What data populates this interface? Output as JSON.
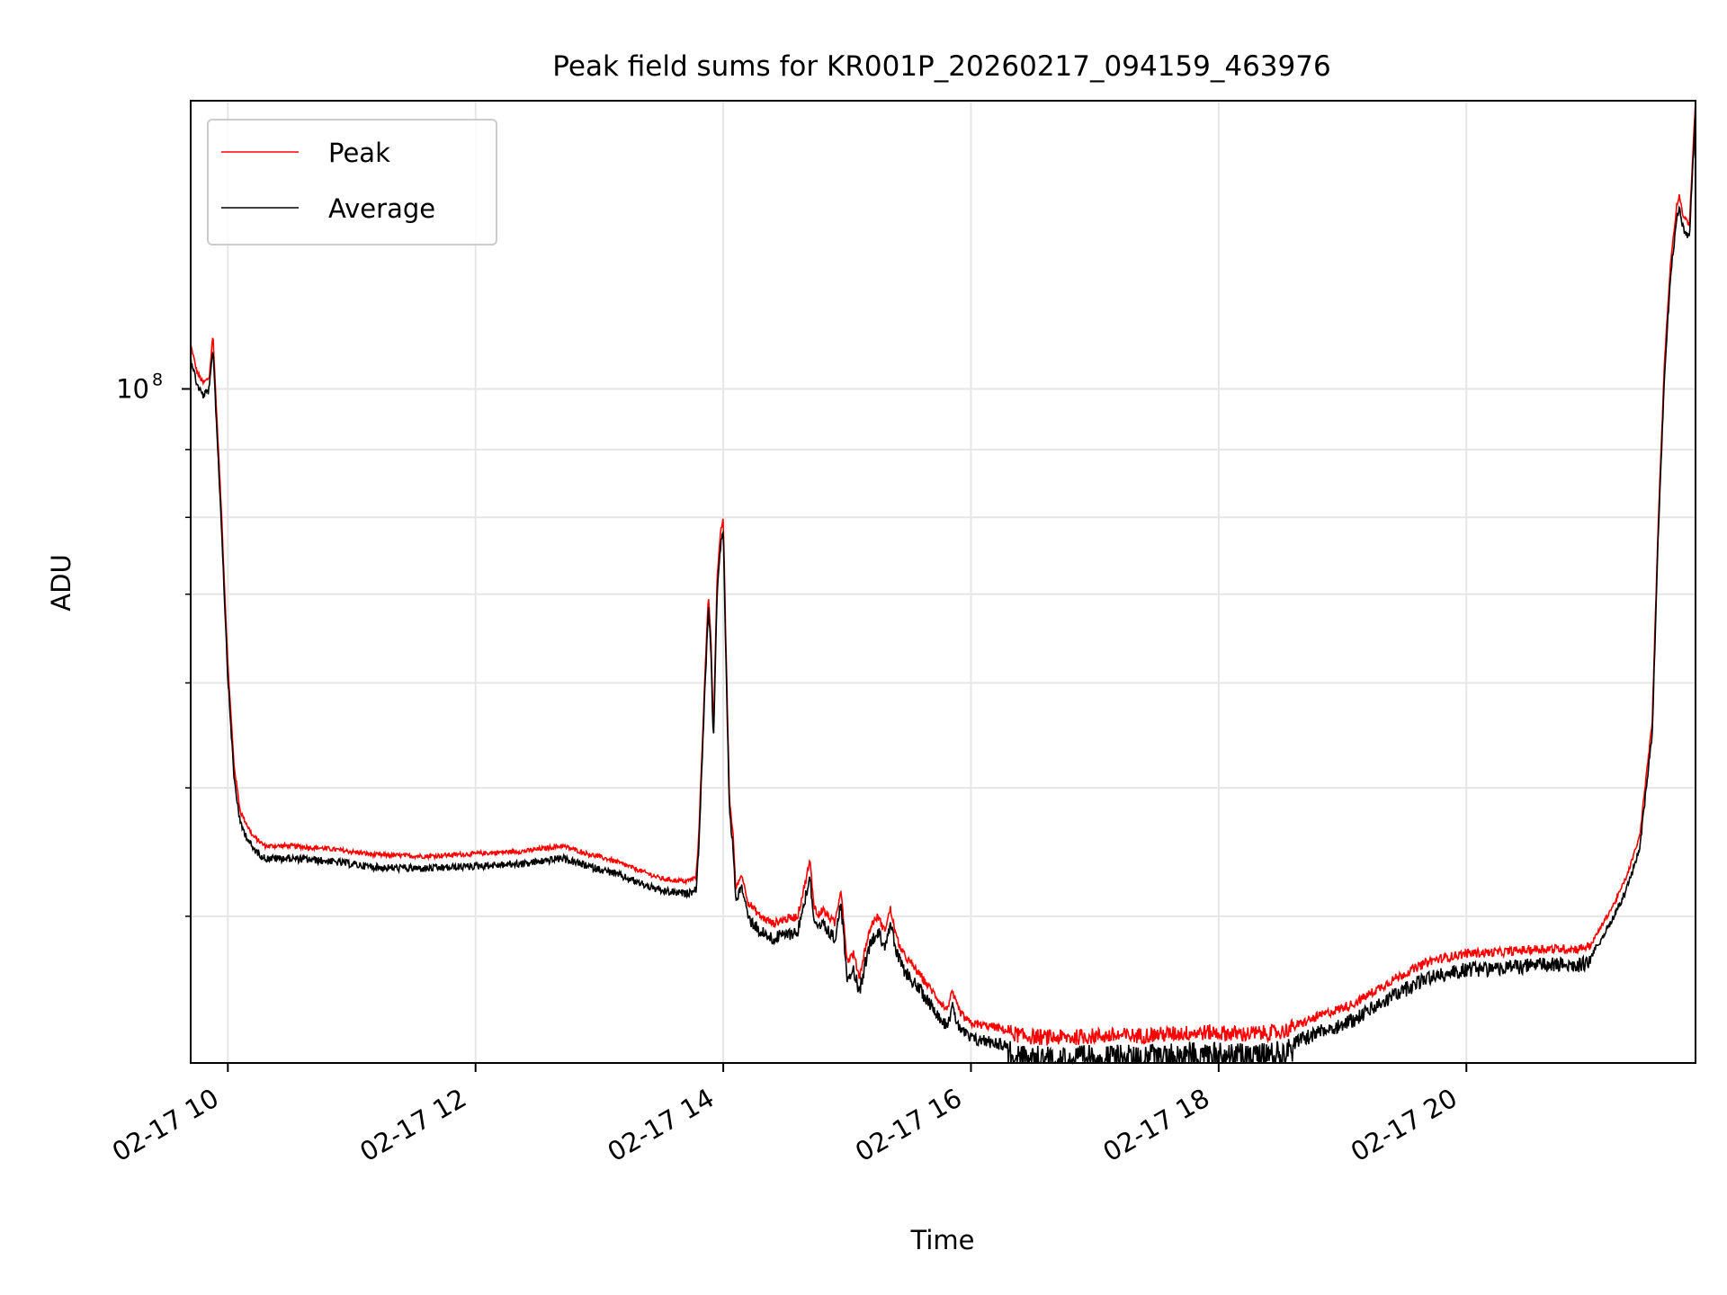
{
  "chart_data": {
    "type": "line",
    "title": "Peak field sums for KR001P_20260217_094159_463976",
    "xlabel": "Time",
    "ylabel": "ADU",
    "yscale": "log",
    "xlim": [
      9.7,
      21.85
    ],
    "ylim": [
      31000000,
      165000000
    ],
    "x_ticks": [
      10,
      12,
      14,
      16,
      18,
      20
    ],
    "x_tick_labels": [
      "02-17 10",
      "02-17 12",
      "02-17 14",
      "02-17 16",
      "02-17 18",
      "02-17 20"
    ],
    "y_major_ticks": [
      100000000
    ],
    "y_major_tick_labels": [
      "10",
      "8"
    ],
    "y_minor_ticks": [
      40000000,
      50000000,
      60000000,
      70000000,
      80000000,
      90000000
    ],
    "grid": true,
    "legend": {
      "position": "top-left",
      "entries": [
        "Peak",
        "Average"
      ]
    },
    "series": [
      {
        "name": "Peak",
        "color": "#ff0000"
      },
      {
        "name": "Average",
        "color": "#000000"
      }
    ],
    "x": [
      9.7,
      9.72,
      9.75,
      9.8,
      9.85,
      9.88,
      9.9,
      9.95,
      10.0,
      10.05,
      10.1,
      10.2,
      10.3,
      10.5,
      10.8,
      11.2,
      11.6,
      12.0,
      12.4,
      12.7,
      12.9,
      13.1,
      13.3,
      13.5,
      13.7,
      13.78,
      13.8,
      13.85,
      13.88,
      13.9,
      13.92,
      13.95,
      13.98,
      14.0,
      14.02,
      14.05,
      14.08,
      14.1,
      14.15,
      14.2,
      14.3,
      14.4,
      14.5,
      14.6,
      14.7,
      14.73,
      14.76,
      14.8,
      14.9,
      14.95,
      15.0,
      15.05,
      15.1,
      15.15,
      15.2,
      15.25,
      15.3,
      15.35,
      15.4,
      15.45,
      15.5,
      15.6,
      15.7,
      15.75,
      15.8,
      15.85,
      15.9,
      15.95,
      16.0,
      16.2,
      16.4,
      16.6,
      16.8,
      17.0,
      17.3,
      17.6,
      17.9,
      18.2,
      18.5,
      18.8,
      19.1,
      19.4,
      19.7,
      20.0,
      20.3,
      20.6,
      20.9,
      21.0,
      21.2,
      21.3,
      21.4,
      21.5,
      21.55,
      21.6,
      21.65,
      21.7,
      21.72,
      21.75,
      21.8,
      21.85
    ],
    "peak_values": [
      108000000,
      106000000,
      103000000,
      101000000,
      102000000,
      110000000,
      100000000,
      80000000,
      62000000,
      52000000,
      48000000,
      46000000,
      45200000,
      45200000,
      45000000,
      44500000,
      44400000,
      44600000,
      44800000,
      45200000,
      44600000,
      44100000,
      43400000,
      42700000,
      42500000,
      42800000,
      45500000,
      60000000,
      70000000,
      65000000,
      55000000,
      72000000,
      78000000,
      80000000,
      65000000,
      49000000,
      46000000,
      42000000,
      43000000,
      41000000,
      40000000,
      39500000,
      39800000,
      40000000,
      44000000,
      41000000,
      40000000,
      40500000,
      39500000,
      42000000,
      37000000,
      37500000,
      36000000,
      38000000,
      39500000,
      40000000,
      39000000,
      40500000,
      38500000,
      37500000,
      37000000,
      36000000,
      35000000,
      34500000,
      34000000,
      35000000,
      34000000,
      33500000,
      33200000,
      33000000,
      32500000,
      32400000,
      32400000,
      32500000,
      32500000,
      32600000,
      32700000,
      32600000,
      32700000,
      33600000,
      34400000,
      35800000,
      37000000,
      37500000,
      37600000,
      37800000,
      37800000,
      38000000,
      41000000,
      43000000,
      46000000,
      56000000,
      80000000,
      105000000,
      125000000,
      138000000,
      140000000,
      135000000,
      133000000,
      165000000
    ]
  }
}
